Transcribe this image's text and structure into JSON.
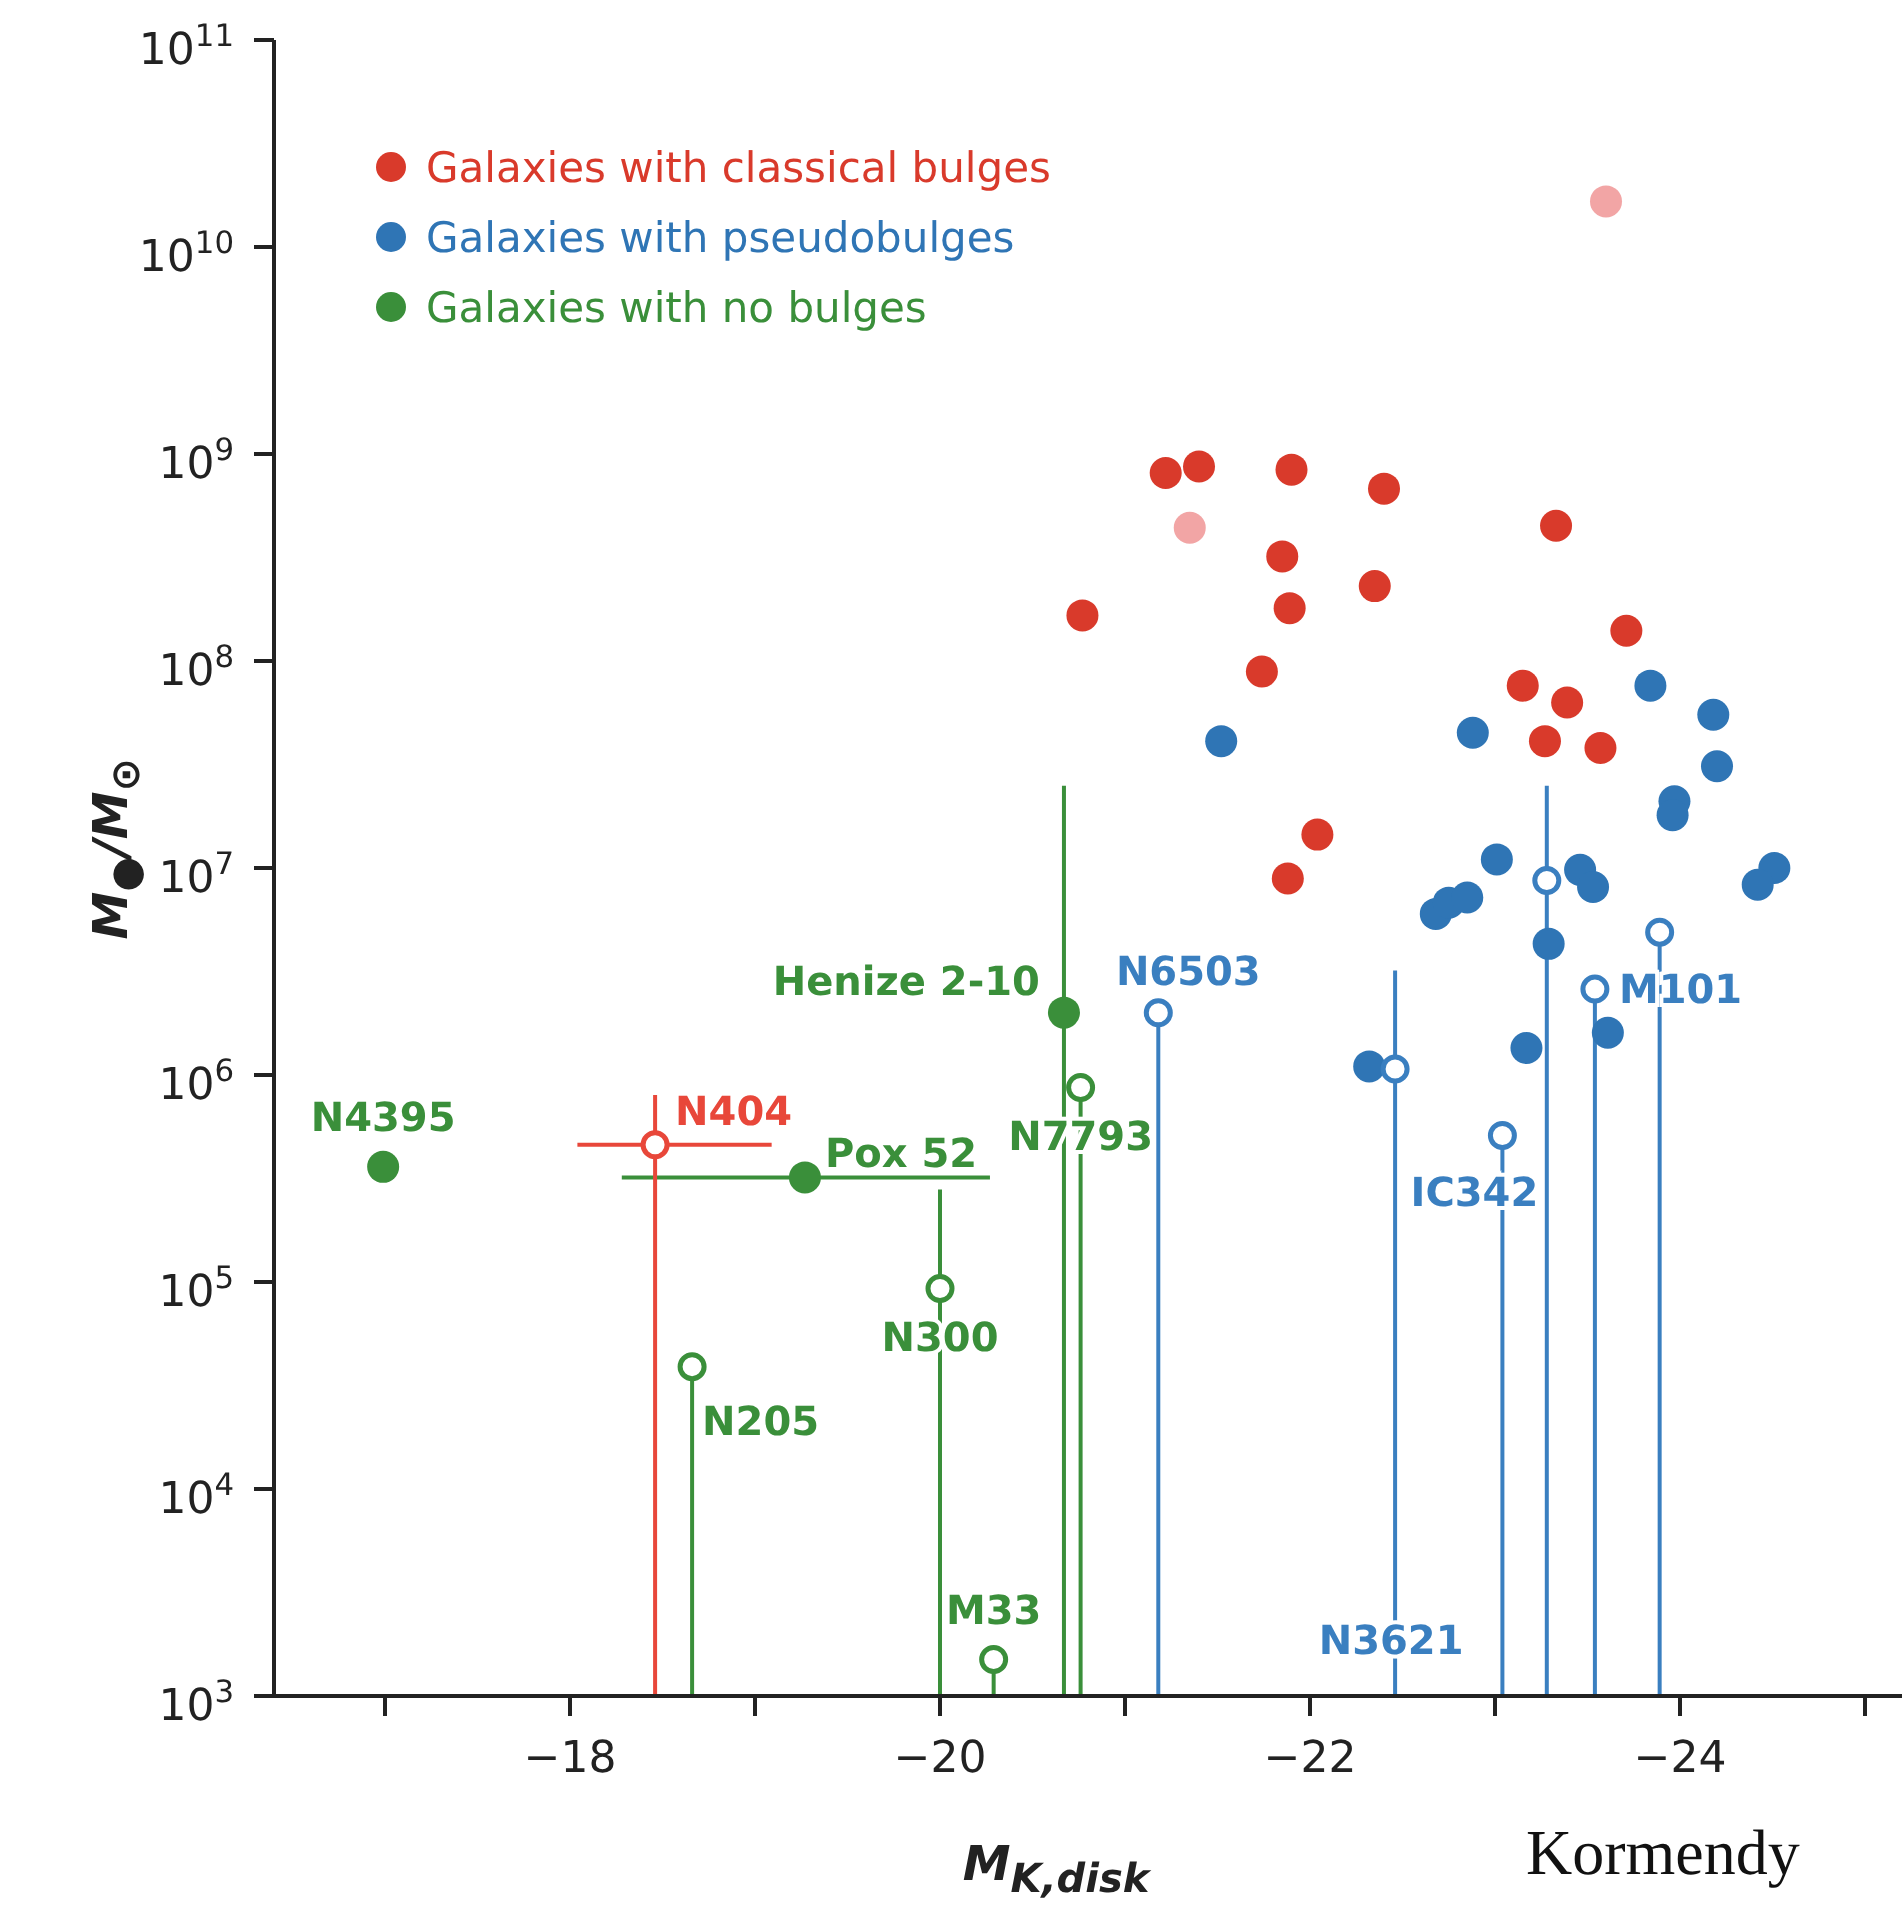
{
  "chart_data": {
    "type": "scatter",
    "xlabel": "M$_{K,disk}$",
    "ylabel": "M$_{●}$/M$_{⊙}$",
    "xlim": [
      -16.4,
      -25.2
    ],
    "xticks": [
      {
        "value": -17,
        "label": null
      },
      {
        "value": -18,
        "label": "−18"
      },
      {
        "value": -19,
        "label": null
      },
      {
        "value": -20,
        "label": "−20"
      },
      {
        "value": -21,
        "label": null
      },
      {
        "value": -22,
        "label": "−22"
      },
      {
        "value": -23,
        "label": null
      },
      {
        "value": -24,
        "label": "−24"
      },
      {
        "value": -25,
        "label": null
      }
    ],
    "ylim": [
      1000,
      100000000000
    ],
    "yticks": [
      {
        "value": 1000,
        "label": "10$^{3}$"
      },
      {
        "value": 10000,
        "label": "10$^{4}$"
      },
      {
        "value": 100000,
        "label": "10$^{5}$"
      },
      {
        "value": 1000000,
        "label": "10$^{6}$"
      },
      {
        "value": 10000000,
        "label": "10$^{7}$"
      },
      {
        "value": 100000000,
        "label": "10$^{8}$"
      },
      {
        "value": 1000000000,
        "label": "10$^{9}$"
      },
      {
        "value": 10000000000,
        "label": "10$^{10}$"
      },
      {
        "value": 100000000000,
        "label": "10$^{11}$"
      }
    ],
    "log": "y",
    "grid": false,
    "legend": "top left",
    "marker": "circle",
    "series": [
      {
        "name": "Galaxies with classical bulges",
        "color": "#d93a2b",
        "x": [
          -21.22,
          -21.4,
          -21.9,
          -22.4,
          -20.77,
          -21.85,
          -21.89,
          -21.74,
          -22.35,
          -23.33,
          -23.71,
          -23.15,
          -23.39,
          -23.27,
          -23.57,
          -21.88,
          -22.04
        ],
        "values": [
          810000000,
          870000000,
          840000000,
          680000000,
          166000000,
          320000000,
          180000000,
          89000000,
          230000000,
          450000000,
          140000000,
          76000000,
          63000000,
          41000000,
          38000000,
          8900000,
          14500000
        ]
      },
      {
        "name": "Galaxies with pseudobulges",
        "color": "#2f75b5",
        "x": [
          -21.52,
          -22.88,
          -23.84,
          -24.18,
          -24.2,
          -23.97,
          -23.96,
          -23.01,
          -22.68,
          -22.75,
          -22.85,
          -23.46,
          -23.53,
          -23.29,
          -24.51,
          -24.42,
          -22.32,
          -23.17,
          -23.61
        ],
        "values": [
          41000000,
          45000000,
          76000000,
          55000000,
          31000000,
          21000000,
          18000000,
          11000000,
          6000000,
          6800000,
          7200000,
          9800000,
          8100000,
          4300000,
          10000000,
          8300000,
          1100000,
          1350000,
          1600000
        ]
      },
      {
        "name": "Galaxies with no bulges",
        "color": "#3a8f3a",
        "x": [
          -16.99,
          -19.27,
          -20.67
        ],
        "values": [
          360000,
          320000,
          2000000
        ],
        "errors": [
          null,
          null,
          [
            1000,
            25000000
          ]
        ],
        "xerrors": [
          null,
          [
            -20.27,
            -18.28
          ],
          null
        ]
      },
      {
        "color": "#f2a5a5",
        "x": [
          -23.6,
          -21.35
        ],
        "values": [
          16600000000,
          440000000
        ]
      },
      {
        "color": "#e8473a",
        "x": [
          -18.46
        ],
        "values": [
          460000
        ],
        "errors": [
          [
            1000,
            800000
          ]
        ],
        "xerrors": [
          [
            -19.09,
            -18.04
          ]
        ]
      },
      {
        "color": "#3a7fc0",
        "x": [
          -21.18,
          -22.46,
          -23.04,
          -23.28,
          -23.54,
          -23.89
        ],
        "values": [
          2000000,
          1070000,
          510000,
          8700000,
          2600000,
          4900000
        ],
        "errors": [
          [
            1000,
            2000000
          ],
          [
            1000,
            3200000
          ],
          [
            1000,
            510000
          ],
          [
            1000,
            25000000
          ],
          [
            1000,
            2600000
          ],
          [
            1000,
            4900000
          ]
        ]
      },
      {
        "color": "#3a8f3a",
        "x": [
          -20.76,
          -20.0,
          -18.66,
          -20.29
        ],
        "values": [
          870000,
          93000,
          39000,
          1500
        ],
        "errors": [
          [
            1000,
            870000
          ],
          [
            1000,
            280000
          ],
          [
            1000,
            39000
          ],
          [
            1000,
            1500
          ]
        ]
      }
    ],
    "annotations": [
      {
        "text": "N4395",
        "x": -16.99,
        "y": 360000
      },
      {
        "text": "N404",
        "x": -18.46,
        "y": 460000
      },
      {
        "text": "Pox 52",
        "x": -19.27,
        "y": 320000
      },
      {
        "text": "Henize 2-10",
        "x": -20.67,
        "y": 2000000
      },
      {
        "text": "N7793",
        "x": -20.76,
        "y": 870000
      },
      {
        "text": "N300",
        "x": -20.0,
        "y": 93000
      },
      {
        "text": "N205",
        "x": -18.66,
        "y": 39000
      },
      {
        "text": "M33",
        "x": -20.29,
        "y": 1500
      },
      {
        "text": "N6503",
        "x": -21.18,
        "y": 2000000
      },
      {
        "text": "N3621",
        "x": -22.46,
        "y": 1900
      },
      {
        "text": "IC342",
        "x": -23.04,
        "y": 510000
      },
      {
        "text": "M101",
        "x": -23.54,
        "y": 2600000
      },
      "Kormendy"
    ]
  }
}
